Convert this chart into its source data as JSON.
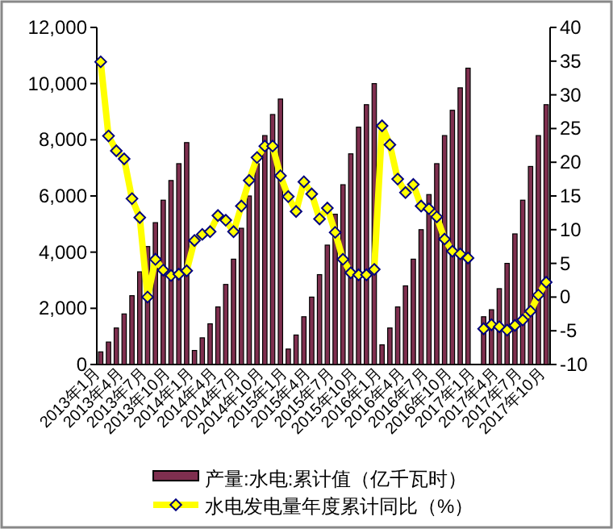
{
  "chart_data": {
    "type": "bar",
    "legend": "bottom",
    "categories": [
      "2013年1月",
      null,
      null,
      "2013年4月",
      null,
      null,
      "2013年7月",
      null,
      null,
      "2013年10月",
      null,
      null,
      "2014年1月",
      null,
      null,
      "2014年4月",
      null,
      null,
      "2014年7月",
      null,
      null,
      "2014年10月",
      null,
      null,
      "2015年1月",
      null,
      null,
      "2015年4月",
      null,
      null,
      "2015年7月",
      null,
      null,
      "2015年10月",
      null,
      null,
      "2016年1月",
      null,
      null,
      "2016年4月",
      null,
      null,
      "2016年7月",
      null,
      null,
      "2016年10月",
      null,
      null,
      "2017年1月",
      null,
      null,
      "2017年4月",
      null,
      null,
      "2017年7月",
      null,
      null,
      "2017年10月"
    ],
    "ylim": [
      0,
      12000
    ],
    "yticks": [
      0,
      {
        "value": 2000,
        "label": "2,000"
      },
      {
        "value": 4000,
        "label": "4,000"
      },
      {
        "value": 6000,
        "label": "6,000"
      },
      {
        "value": 8000,
        "label": "8,000"
      },
      {
        "value": 10000,
        "label": "10,000"
      },
      {
        "value": 12000,
        "label": "12,000"
      }
    ],
    "y2lim": [
      -10,
      40
    ],
    "y2ticks": [
      -10,
      -5,
      0,
      5,
      10,
      15,
      20,
      25,
      30,
      35,
      40
    ],
    "series": [
      {
        "name": "产量:水电:累计值（亿千瓦时）",
        "color": "#7f2f4f",
        "values": [
          450,
          800,
          1300,
          1800,
          2450,
          3300,
          4200,
          5050,
          5850,
          6550,
          7150,
          7900,
          500,
          950,
          1450,
          2050,
          2850,
          3750,
          4850,
          6000,
          7150,
          8150,
          8900,
          9450,
          550,
          1050,
          1700,
          2400,
          3200,
          4250,
          5350,
          6400,
          7500,
          8450,
          9250,
          10000,
          700,
          1300,
          2050,
          2800,
          3750,
          4800,
          6050,
          7150,
          8150,
          9050,
          9850,
          10550,
          null,
          1700,
          1950,
          2700,
          3600,
          4650,
          5850,
          7050,
          8150,
          9250
        ]
      },
      {
        "name": "水电发电量年度累计同比（%）",
        "type": "line",
        "axis": "y2",
        "color": "#ffff00",
        "marker": "diamond",
        "values": [
          34.9,
          23.9,
          21.7,
          20.5,
          14.6,
          11.8,
          0.0,
          5.6,
          4.0,
          3.2,
          3.4,
          3.9,
          8.4,
          9.3,
          9.7,
          12.1,
          11.4,
          9.7,
          13.5,
          17.3,
          20.7,
          22.4,
          22.4,
          18.0,
          14.9,
          12.7,
          17.1,
          15.3,
          11.6,
          13.2,
          9.6,
          5.6,
          3.6,
          3.3,
          3.3,
          4.1,
          25.4,
          22.6,
          17.5,
          15.5,
          16.7,
          13.5,
          13.1,
          11.9,
          8.6,
          6.8,
          6.4,
          5.8,
          null,
          -4.7,
          -4.1,
          -4.4,
          -4.9,
          -4.2,
          -3.4,
          -2.1,
          0.3,
          2.2
        ]
      }
    ]
  }
}
